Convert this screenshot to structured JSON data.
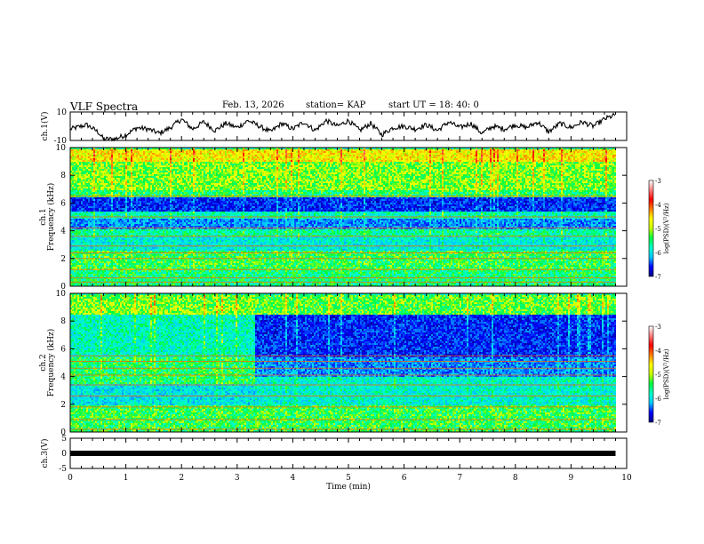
{
  "header": {
    "title": "VLF Spectra",
    "date": "Feb. 13, 2026",
    "station": "station= KAP",
    "start": "start  UT =   18: 40: 0"
  },
  "chart_data": [
    {
      "type": "line",
      "panel": "ch1-waveform",
      "ylabel": "ch.1(V)",
      "ylim": [
        -10,
        10
      ],
      "yticks": [
        "10",
        "-10"
      ],
      "x": [
        0,
        0.3,
        0.5,
        0.6,
        0.8,
        1.0,
        1.2,
        1.4,
        1.6,
        1.8,
        2.0,
        2.2,
        2.4,
        2.6,
        2.8,
        3.0,
        3.2,
        3.4,
        3.6,
        3.8,
        4.0,
        4.2,
        4.4,
        4.6,
        4.8,
        5.0,
        5.2,
        5.4,
        5.6,
        5.8,
        6.0,
        6.2,
        6.4,
        6.6,
        6.8,
        7.0,
        7.2,
        7.4,
        7.6,
        7.8,
        8.0,
        8.2,
        8.4,
        8.6,
        8.8,
        9.0,
        9.2,
        9.4,
        9.6,
        9.8
      ],
      "values": [
        -2,
        1,
        -4,
        -9,
        -9,
        -6,
        -1,
        -2,
        -5,
        -1,
        5,
        -2,
        3,
        -3,
        2,
        -1,
        4,
        0,
        -4,
        2,
        -2,
        3,
        -3,
        4,
        0,
        4,
        -3,
        2,
        -6,
        -1,
        0,
        -2,
        1,
        -3,
        3,
        -1,
        2,
        -5,
        0,
        -2,
        1,
        -1,
        3,
        -4,
        2,
        -1,
        3,
        0,
        5,
        8
      ]
    },
    {
      "type": "heatmap",
      "panel": "ch1-spectrogram",
      "ylabel": "ch.1  Frequency (kHz)",
      "ylim": [
        0,
        10
      ],
      "yticks": [
        "10",
        "8",
        "6",
        "4",
        "2",
        "0"
      ],
      "bands_khz": [
        {
          "f0": 9.0,
          "f1": 10.0,
          "level": 0.7
        },
        {
          "f0": 7.0,
          "f1": 9.0,
          "level": 0.58
        },
        {
          "f0": 6.45,
          "f1": 7.0,
          "level": 0.5
        },
        {
          "f0": 5.5,
          "f1": 6.45,
          "level": 0.15
        },
        {
          "f0": 5.0,
          "f1": 5.5,
          "level": 0.42
        },
        {
          "f0": 4.2,
          "f1": 5.0,
          "level": 0.25
        },
        {
          "f0": 3.6,
          "f1": 4.2,
          "level": 0.45
        },
        {
          "f0": 2.6,
          "f1": 3.6,
          "level": 0.38
        },
        {
          "f0": 1.2,
          "f1": 2.6,
          "level": 0.52
        },
        {
          "f0": 0.0,
          "f1": 1.2,
          "level": 0.48
        }
      ],
      "lines_khz": [
        0.3,
        0.6,
        1.2,
        2.0,
        2.4,
        2.9,
        3.6,
        4.2,
        5.0,
        6.5
      ]
    },
    {
      "type": "heatmap",
      "panel": "ch2-spectrogram",
      "ylabel": "ch.2  Frequency (kHz)",
      "ylim": [
        0,
        10
      ],
      "yticks": [
        "10",
        "8",
        "6",
        "4",
        "2",
        "0"
      ],
      "transition_min": 3.3,
      "bands_before_khz": [
        {
          "f0": 8.5,
          "f1": 10.0,
          "level": 0.58
        },
        {
          "f0": 5.5,
          "f1": 8.5,
          "level": 0.42
        },
        {
          "f0": 3.5,
          "f1": 5.5,
          "level": 0.5
        },
        {
          "f0": 2.0,
          "f1": 3.5,
          "level": 0.36
        },
        {
          "f0": 0.0,
          "f1": 2.0,
          "level": 0.52
        }
      ],
      "bands_after_khz": [
        {
          "f0": 8.5,
          "f1": 10.0,
          "level": 0.55
        },
        {
          "f0": 5.5,
          "f1": 8.5,
          "level": 0.15
        },
        {
          "f0": 4.0,
          "f1": 5.5,
          "level": 0.25
        },
        {
          "f0": 2.0,
          "f1": 4.0,
          "level": 0.4
        },
        {
          "f0": 0.0,
          "f1": 2.0,
          "level": 0.52
        }
      ],
      "lines_khz": [
        0.2,
        0.9,
        1.8,
        2.6,
        3.4,
        4.1,
        4.6,
        5.1,
        5.5
      ]
    },
    {
      "type": "line",
      "panel": "ch3-waveform",
      "ylabel": "ch.3(V)",
      "ylim": [
        -5,
        5
      ],
      "yticks": [
        "5",
        "0",
        "-5"
      ],
      "x": [
        0,
        9.8
      ],
      "values": [
        0,
        0
      ]
    }
  ],
  "xaxis": {
    "xlabel": "Time (min)",
    "xlim": [
      0,
      10
    ],
    "ticks": [
      "0",
      "1",
      "2",
      "3",
      "4",
      "5",
      "6",
      "7",
      "8",
      "9",
      "10"
    ]
  },
  "colorbars": [
    {
      "label": "log(PSD)(V²/Hz)",
      "range": [
        -7,
        -3
      ],
      "ticks": [
        "-3",
        "-4",
        "-5",
        "-6",
        "-7"
      ],
      "colors": [
        "#000080",
        "#0000ff",
        "#00c8ff",
        "#00ffc8",
        "#00ff40",
        "#c8ff00",
        "#ffff00",
        "#ff8000",
        "#ff0000",
        "#ff8080",
        "#ffffff"
      ]
    },
    {
      "label": "log(PSD)(V²/Hz)",
      "range": [
        -7,
        -3
      ],
      "ticks": [
        "-3",
        "-4",
        "-5",
        "-6",
        "-7"
      ],
      "colors": [
        "#000080",
        "#0000ff",
        "#00c8ff",
        "#00ffc8",
        "#00ff40",
        "#c8ff00",
        "#ffff00",
        "#ff8000",
        "#ff0000",
        "#ff8080",
        "#ffffff"
      ]
    }
  ]
}
